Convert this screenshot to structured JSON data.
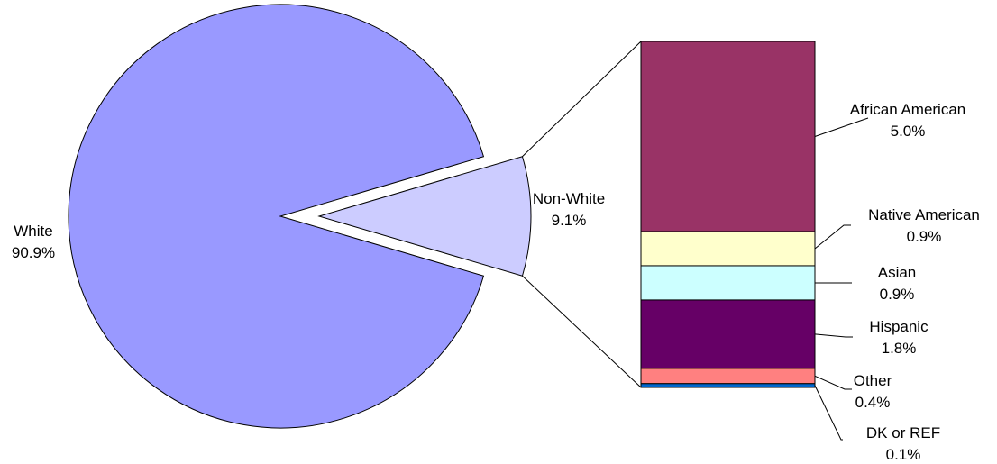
{
  "chart_data": {
    "type": "bar-of-pie",
    "pie": {
      "slices": [
        {
          "label": "White",
          "value": 90.9,
          "value_label": "90.9%",
          "color": "#9999FF"
        },
        {
          "label": "Non-White",
          "value": 9.1,
          "value_label": "9.1%",
          "color": "#CCCCFF",
          "exploded": true
        }
      ]
    },
    "bar": {
      "of": "Non-White",
      "segments": [
        {
          "label": "African American",
          "value": 5.0,
          "value_label": "5.0%",
          "color": "#993366"
        },
        {
          "label": "Native American",
          "value": 0.9,
          "value_label": "0.9%",
          "color": "#FFFFCC"
        },
        {
          "label": "Asian",
          "value": 0.9,
          "value_label": "0.9%",
          "color": "#CCFFFF"
        },
        {
          "label": "Hispanic",
          "value": 1.8,
          "value_label": "1.8%",
          "color": "#660066"
        },
        {
          "label": "Other",
          "value": 0.4,
          "value_label": "0.4%",
          "color": "#FF8080"
        },
        {
          "label": "DK or REF",
          "value": 0.1,
          "value_label": "0.1%",
          "color": "#0066CC"
        }
      ]
    }
  }
}
